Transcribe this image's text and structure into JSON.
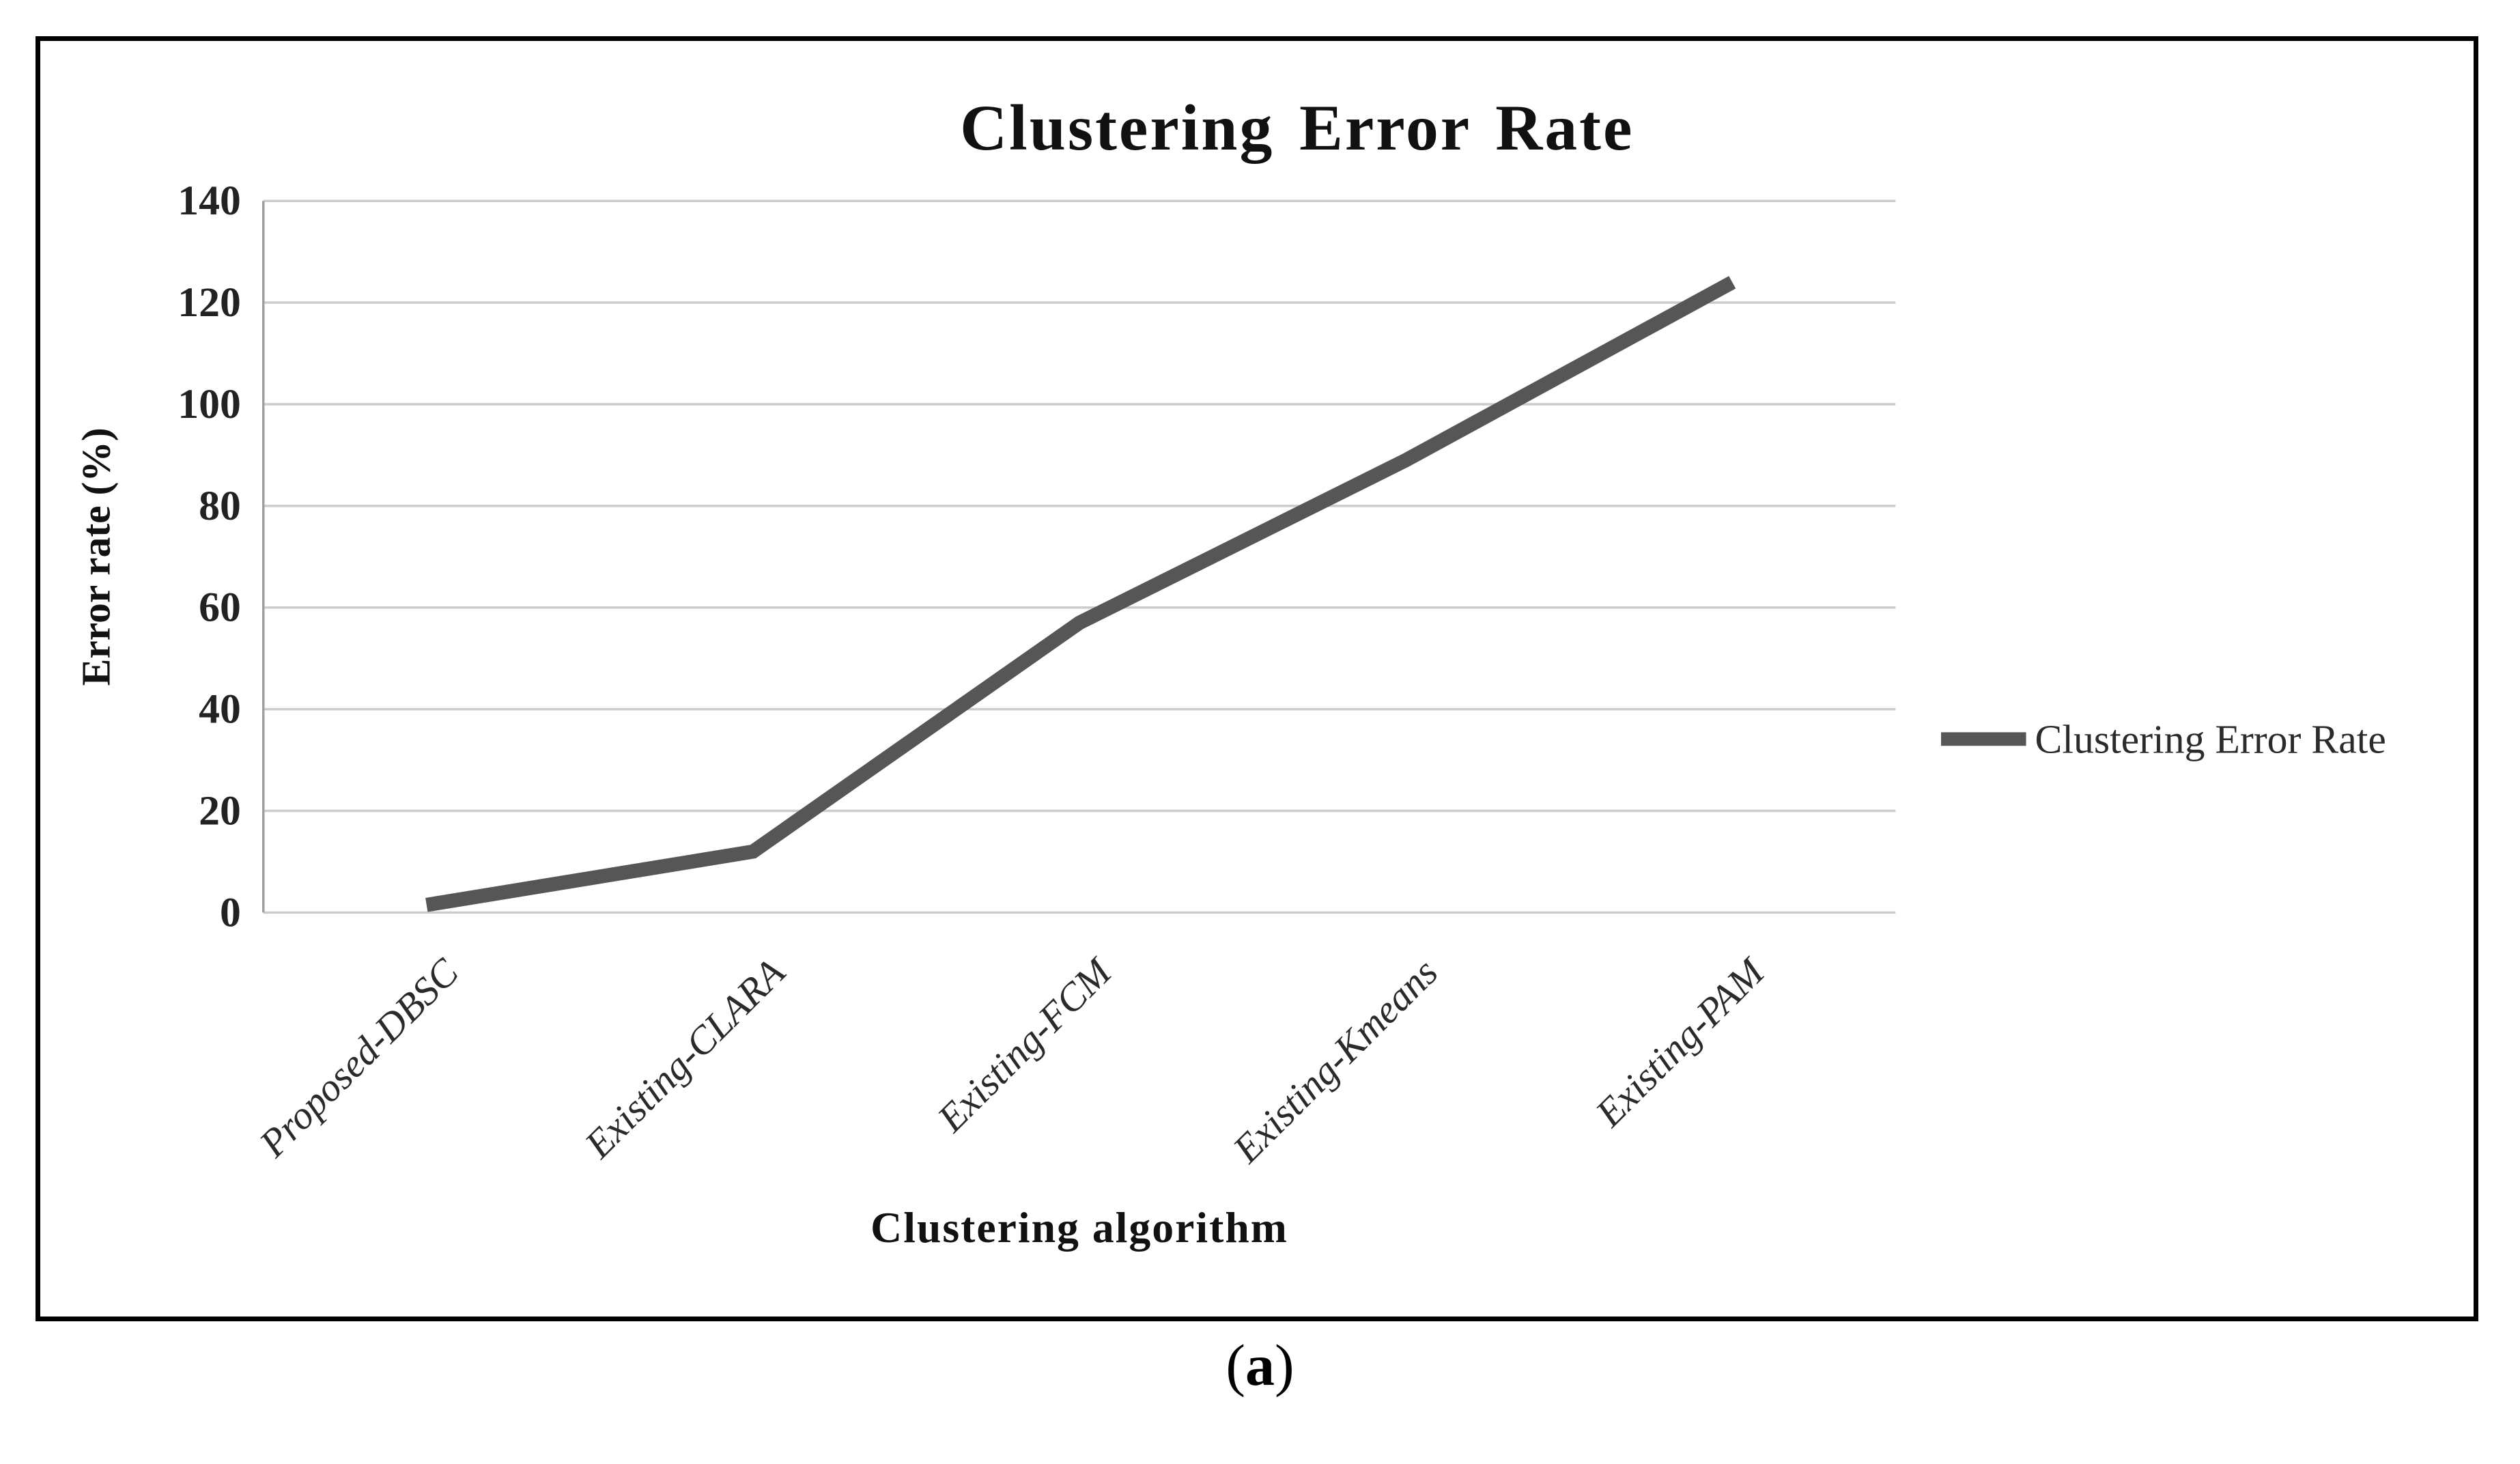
{
  "figure": {
    "caption_open": "(",
    "caption_letter": "a",
    "caption_close": ")"
  },
  "chart_data": {
    "type": "line",
    "title": "Clustering Error Rate",
    "xlabel": "Clustering algorithm",
    "ylabel": "Error rate (%)",
    "categories": [
      "Proposed-DBSC",
      "Existing-CLARA",
      "Existing-FCM",
      "Existing-Kmeans",
      "Existing-PAM"
    ],
    "series": [
      {
        "name": "Clustering Error Rate",
        "values": [
          1.5,
          12,
          57,
          89,
          124
        ]
      }
    ],
    "ylim": [
      0,
      140
    ],
    "yticks": [
      0,
      20,
      40,
      60,
      80,
      100,
      120,
      140
    ],
    "grid": true,
    "legend_position": "right",
    "legend_label": "Clustering Error Rate",
    "colors": {
      "line": "#565656",
      "gridline": "#cccccc",
      "axis": "#9e9e9e",
      "title_text": "#111111",
      "tick_text": "#222222",
      "category_text": "#2a2a2a",
      "legend_text": "#2b2b2b",
      "border": "#000000",
      "background": "#ffffff"
    }
  }
}
